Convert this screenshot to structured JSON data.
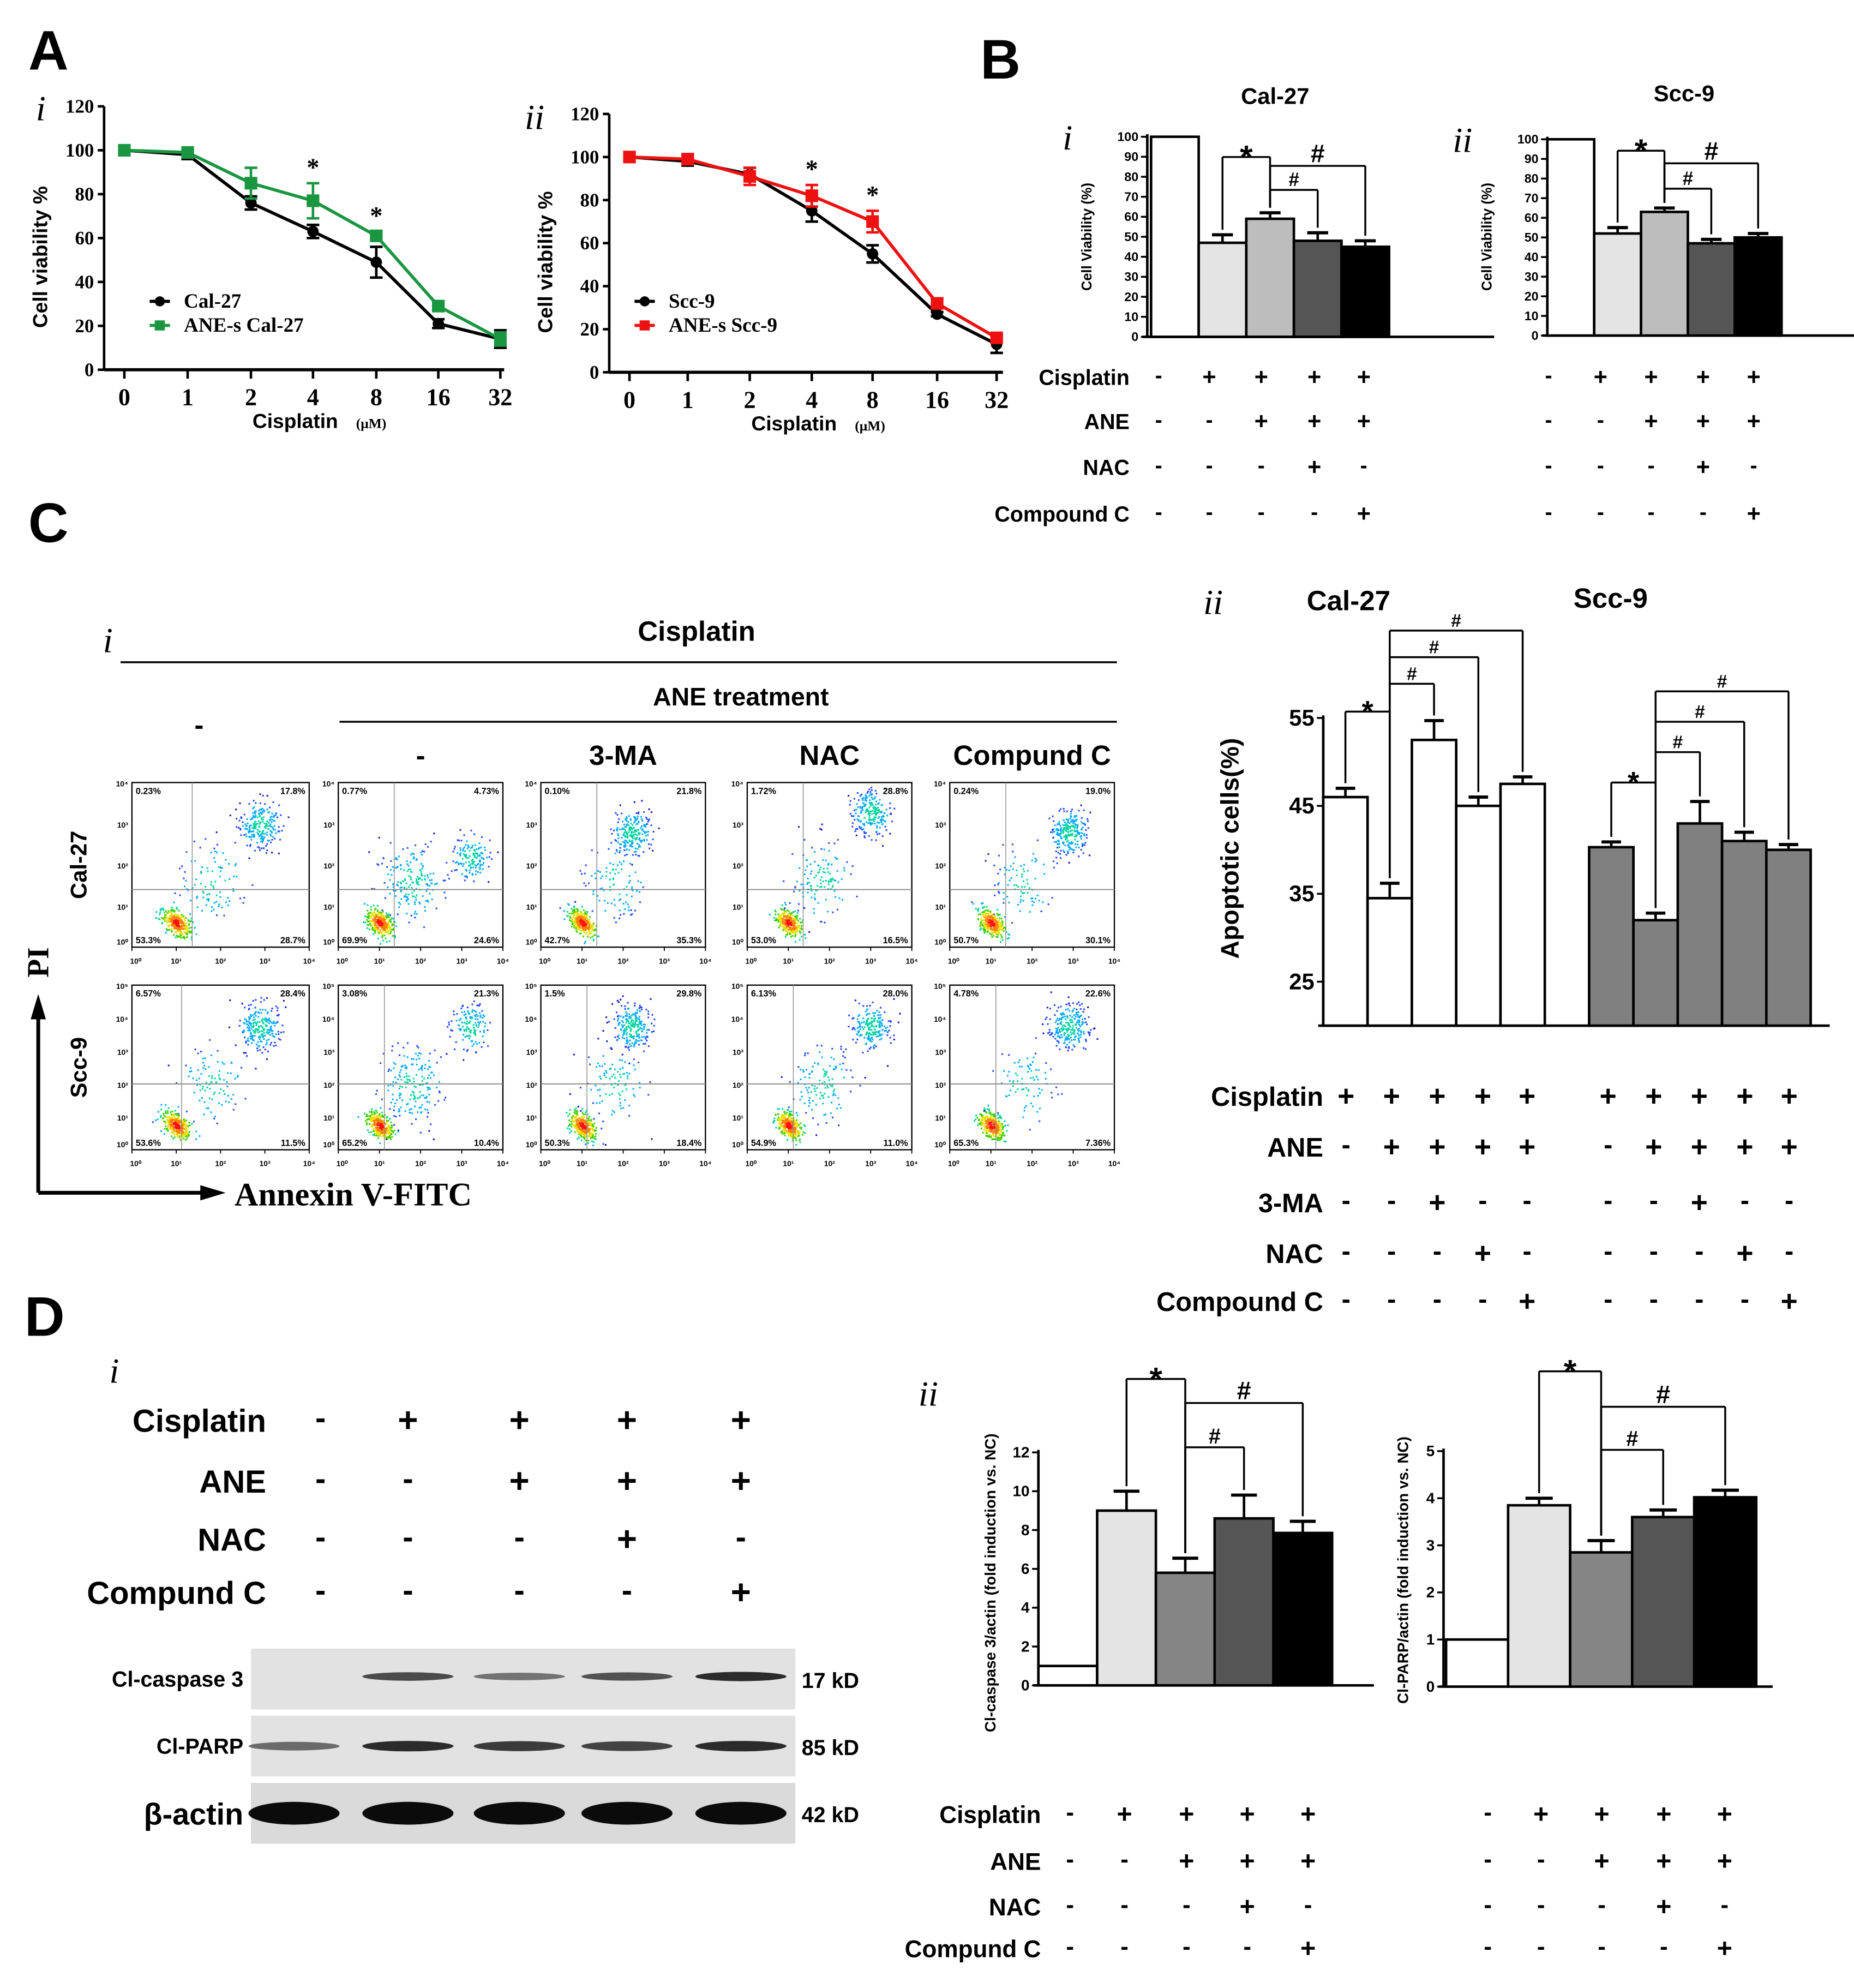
{
  "panel_labels": {
    "A": "A",
    "B": "B",
    "C": "C",
    "D": "D"
  },
  "chart_data": [
    {
      "id": "A-i",
      "type": "line",
      "sublabel": "i",
      "title": "",
      "xlabel": "Cisplatin",
      "xunit": "(μM)",
      "ylabel": "Cell viability %",
      "categories": [
        "0",
        "1",
        "2",
        "4",
        "8",
        "16",
        "32"
      ],
      "ylim": [
        0,
        120
      ],
      "yticks": [
        0,
        20,
        40,
        60,
        80,
        100,
        120
      ],
      "series": [
        {
          "name": "Cal-27",
          "color": "#000000",
          "marker": "circle",
          "values": [
            100,
            98,
            76,
            63,
            49,
            21,
            14
          ],
          "errors": [
            0,
            2,
            3,
            3,
            7,
            2,
            4
          ]
        },
        {
          "name": "ANE-s Cal-27",
          "color": "#1a9641",
          "marker": "square",
          "values": [
            100,
            99,
            85,
            77,
            61,
            29,
            14
          ],
          "errors": [
            0,
            1,
            7,
            8,
            2,
            2,
            3
          ]
        }
      ],
      "annotations": [
        {
          "category": "4",
          "text": "*"
        },
        {
          "category": "8",
          "text": "*"
        }
      ]
    },
    {
      "id": "A-ii",
      "type": "line",
      "sublabel": "ii",
      "title": "",
      "xlabel": "Cisplatin",
      "xunit": "(μM)",
      "ylabel": "Cell viability %",
      "categories": [
        "0",
        "1",
        "2",
        "4",
        "8",
        "16",
        "32"
      ],
      "ylim": [
        0,
        120
      ],
      "yticks": [
        0,
        20,
        40,
        60,
        80,
        100,
        120
      ],
      "series": [
        {
          "name": "Scc-9",
          "color": "#000000",
          "marker": "circle",
          "values": [
            100,
            98,
            92,
            75,
            55,
            27,
            13
          ],
          "errors": [
            0,
            2,
            3,
            5,
            4,
            1,
            4
          ]
        },
        {
          "name": "ANE-s Scc-9",
          "color": "#ee1111",
          "marker": "square",
          "values": [
            100,
            99,
            91,
            82,
            70,
            32,
            16
          ],
          "errors": [
            0,
            2,
            4,
            5,
            5,
            2,
            1
          ]
        }
      ],
      "annotations": [
        {
          "category": "4",
          "text": "*"
        },
        {
          "category": "8",
          "text": "*"
        }
      ]
    },
    {
      "id": "B-i",
      "type": "bar",
      "sublabel": "i",
      "title": "Cal-27",
      "ylabel": "Cell Viability (%)",
      "ylim": [
        0,
        100
      ],
      "yticks": [
        0,
        10,
        20,
        30,
        40,
        50,
        60,
        70,
        80,
        90,
        100
      ],
      "values": [
        100,
        47,
        59,
        48,
        45
      ],
      "errors": [
        0,
        4,
        3,
        4,
        3
      ],
      "colors": [
        "#ffffff",
        "#e4e4e4",
        "#bdbdbd",
        "#555555",
        "#000000"
      ],
      "brackets": [
        {
          "from": 1,
          "to": 2,
          "symbol": "*"
        },
        {
          "from": 2,
          "to": 4,
          "symbol": "#"
        },
        {
          "from": 2,
          "to": 3,
          "symbol": "#"
        }
      ]
    },
    {
      "id": "B-ii",
      "type": "bar",
      "sublabel": "ii",
      "title": "Scc-9",
      "ylabel": "Cell Viability (%)",
      "ylim": [
        0,
        100
      ],
      "yticks": [
        0,
        10,
        20,
        30,
        40,
        50,
        60,
        70,
        80,
        90,
        100
      ],
      "values": [
        100,
        52,
        63,
        47,
        50
      ],
      "errors": [
        0,
        3,
        2,
        2,
        2
      ],
      "colors": [
        "#ffffff",
        "#e4e4e4",
        "#bdbdbd",
        "#555555",
        "#000000"
      ],
      "brackets": [
        {
          "from": 1,
          "to": 2,
          "symbol": "*"
        },
        {
          "from": 2,
          "to": 4,
          "symbol": "#"
        },
        {
          "from": 2,
          "to": 3,
          "symbol": "#"
        }
      ]
    },
    {
      "id": "C-ii",
      "type": "bar",
      "sublabel": "ii",
      "ylabel": "Apoptotic cells(%)",
      "ylim": [
        20,
        55
      ],
      "yticks": [
        25,
        35,
        45,
        55
      ],
      "groups": [
        {
          "name": "Cal-27",
          "color": "#ffffff",
          "values": [
            46,
            34.5,
            52.5,
            45,
            47.5
          ],
          "errors": [
            1,
            1.7,
            2.2,
            1,
            0.8
          ],
          "brackets": [
            {
              "from": 0,
              "to": 1,
              "symbol": "*"
            },
            {
              "from": 1,
              "to": 2,
              "symbol": "#"
            },
            {
              "from": 1,
              "to": 3,
              "symbol": "#"
            },
            {
              "from": 1,
              "to": 4,
              "symbol": "#"
            }
          ]
        },
        {
          "name": "Scc-9",
          "color": "#808080",
          "values": [
            40.3,
            32,
            43,
            41,
            40
          ],
          "errors": [
            0.6,
            0.8,
            2.5,
            1,
            0.6
          ],
          "brackets": [
            {
              "from": 0,
              "to": 1,
              "symbol": "*"
            },
            {
              "from": 1,
              "to": 2,
              "symbol": "#"
            },
            {
              "from": 1,
              "to": 3,
              "symbol": "#"
            },
            {
              "from": 1,
              "to": 4,
              "symbol": "#"
            }
          ]
        }
      ]
    },
    {
      "id": "D-ii-caspase",
      "type": "bar",
      "sublabel": "ii",
      "ylabel": "Cl-caspase 3/actin (fold induction vs. NC)",
      "ylim": [
        0,
        12
      ],
      "yticks": [
        0,
        2,
        4,
        6,
        8,
        10,
        12
      ],
      "values": [
        1,
        9,
        5.8,
        8.6,
        7.85
      ],
      "errors": [
        0,
        1,
        0.75,
        1.2,
        0.6
      ],
      "colors": [
        "#ffffff",
        "#e4e4e4",
        "#858585",
        "#555555",
        "#000000"
      ],
      "brackets": [
        {
          "from": 1,
          "to": 2,
          "symbol": "*"
        },
        {
          "from": 2,
          "to": 4,
          "symbol": "#"
        },
        {
          "from": 2,
          "to": 3,
          "symbol": "#"
        }
      ]
    },
    {
      "id": "D-ii-parp",
      "type": "bar",
      "sublabel": "",
      "ylabel": "Cl-PARP/actin (fold induction vs. NC)",
      "ylim": [
        0,
        5
      ],
      "yticks": [
        0,
        1,
        2,
        3,
        4,
        5
      ],
      "values": [
        1,
        3.85,
        2.85,
        3.6,
        4.02
      ],
      "errors": [
        0,
        0.15,
        0.25,
        0.15,
        0.15
      ],
      "colors": [
        "#ffffff",
        "#e4e4e4",
        "#858585",
        "#555555",
        "#000000"
      ],
      "brackets": [
        {
          "from": 1,
          "to": 2,
          "symbol": "*"
        },
        {
          "from": 2,
          "to": 4,
          "symbol": "#"
        },
        {
          "from": 2,
          "to": 3,
          "symbol": "#"
        }
      ]
    }
  ],
  "treatment_tables": {
    "B": {
      "rows": [
        {
          "label": "Cisplatin",
          "a": [
            "-",
            "+",
            "+",
            "+",
            "+"
          ],
          "b": [
            "-",
            "+",
            "+",
            "+",
            "+"
          ]
        },
        {
          "label": "ANE",
          "a": [
            "-",
            "-",
            "+",
            "+",
            "+"
          ],
          "b": [
            "-",
            "-",
            "+",
            "+",
            "+"
          ]
        },
        {
          "label": "NAC",
          "a": [
            "-",
            "-",
            "-",
            "+",
            "-"
          ],
          "b": [
            "-",
            "-",
            "-",
            "+",
            "-"
          ]
        },
        {
          "label": "Compound C",
          "a": [
            "-",
            "-",
            "-",
            "-",
            "+"
          ],
          "b": [
            "-",
            "-",
            "-",
            "-",
            "+"
          ]
        }
      ]
    },
    "C": {
      "rows": [
        {
          "label": "Cisplatin",
          "a": [
            "+",
            "+",
            "+",
            "+",
            "+"
          ],
          "b": [
            "+",
            "+",
            "+",
            "+",
            "+"
          ]
        },
        {
          "label": "ANE",
          "a": [
            "-",
            "+",
            "+",
            "+",
            "+"
          ],
          "b": [
            "-",
            "+",
            "+",
            "+",
            "+"
          ]
        },
        {
          "label": "3-MA",
          "a": [
            "-",
            "-",
            "+",
            "-",
            "-"
          ],
          "b": [
            "-",
            "-",
            "+",
            "-",
            "-"
          ]
        },
        {
          "label": "NAC",
          "a": [
            "-",
            "-",
            "-",
            "+",
            "-"
          ],
          "b": [
            "-",
            "-",
            "-",
            "+",
            "-"
          ]
        },
        {
          "label": "Compound C",
          "a": [
            "-",
            "-",
            "-",
            "-",
            "+"
          ],
          "b": [
            "-",
            "-",
            "-",
            "-",
            "+"
          ]
        }
      ]
    },
    "D_blot": {
      "rows": [
        {
          "label": "Cisplatin",
          "a": [
            "-",
            "+",
            "+",
            "+",
            "+"
          ]
        },
        {
          "label": "ANE",
          "a": [
            "-",
            "-",
            "+",
            "+",
            "+"
          ]
        },
        {
          "label": "NAC",
          "a": [
            "-",
            "-",
            "-",
            "+",
            "-"
          ]
        },
        {
          "label": "Compund C",
          "a": [
            "-",
            "-",
            "-",
            "-",
            "+"
          ]
        }
      ]
    },
    "D_chart": {
      "rows": [
        {
          "label": "Cisplatin",
          "a": [
            "-",
            "+",
            "+",
            "+",
            "+"
          ],
          "b": [
            "-",
            "+",
            "+",
            "+",
            "+"
          ]
        },
        {
          "label": "ANE",
          "a": [
            "-",
            "-",
            "+",
            "+",
            "+"
          ],
          "b": [
            "-",
            "-",
            "+",
            "+",
            "+"
          ]
        },
        {
          "label": "NAC",
          "a": [
            "-",
            "-",
            "-",
            "+",
            "-"
          ],
          "b": [
            "-",
            "-",
            "-",
            "+",
            "-"
          ]
        },
        {
          "label": "Compund C",
          "a": [
            "-",
            "-",
            "-",
            "-",
            "+"
          ],
          "b": [
            "-",
            "-",
            "-",
            "-",
            "+"
          ]
        }
      ]
    }
  },
  "flow": {
    "sublabel": "i",
    "header_top": "Cisplatin",
    "header_ane": "ANE treatment",
    "control_label": "-",
    "columns": [
      "-",
      "3-MA",
      "NAC",
      "Compund C"
    ],
    "row_labels": [
      "Cal-27",
      "Scc-9"
    ],
    "y_axis_label": "PI",
    "x_axis_label": "Annexin V-FITC",
    "tick_labels": [
      "10⁰",
      "10¹",
      "10²",
      "10³",
      "10⁴",
      "10⁵"
    ],
    "plots": [
      [
        {
          "ul": "0.23%",
          "ur": "17.8%",
          "ll": "53.3%",
          "lr": "28.7%"
        },
        {
          "ul": "0.77%",
          "ur": "4.73%",
          "ll": "69.9%",
          "lr": "24.6%"
        },
        {
          "ul": "0.10%",
          "ur": "21.8%",
          "ll": "42.7%",
          "lr": "35.3%"
        },
        {
          "ul": "1.72%",
          "ur": "28.8%",
          "ll": "53.0%",
          "lr": "16.5%"
        },
        {
          "ul": "0.24%",
          "ur": "19.0%",
          "ll": "50.7%",
          "lr": "30.1%"
        }
      ],
      [
        {
          "ul": "6.57%",
          "ur": "28.4%",
          "ll": "53.6%",
          "lr": "11.5%"
        },
        {
          "ul": "3.08%",
          "ur": "21.3%",
          "ll": "65.2%",
          "lr": "10.4%"
        },
        {
          "ul": "1.5%",
          "ur": "29.8%",
          "ll": "50.3%",
          "lr": "18.4%"
        },
        {
          "ul": "6.13%",
          "ur": "28.0%",
          "ll": "54.9%",
          "lr": "11.0%"
        },
        {
          "ul": "4.78%",
          "ur": "22.6%",
          "ll": "65.3%",
          "lr": "7.36%"
        }
      ]
    ]
  },
  "blot": {
    "sublabel": "i",
    "rows": [
      {
        "label": "Cl-caspase 3",
        "size": "17 kD",
        "intensity": [
          0,
          0.6,
          0.35,
          0.55,
          0.8
        ]
      },
      {
        "label": "Cl-PARP",
        "size": "85 kD",
        "intensity": [
          0.4,
          0.8,
          0.7,
          0.65,
          0.8
        ]
      },
      {
        "label": "β-actin",
        "size": "42 kD",
        "intensity": [
          1,
          1,
          1,
          1,
          1
        ]
      }
    ]
  }
}
